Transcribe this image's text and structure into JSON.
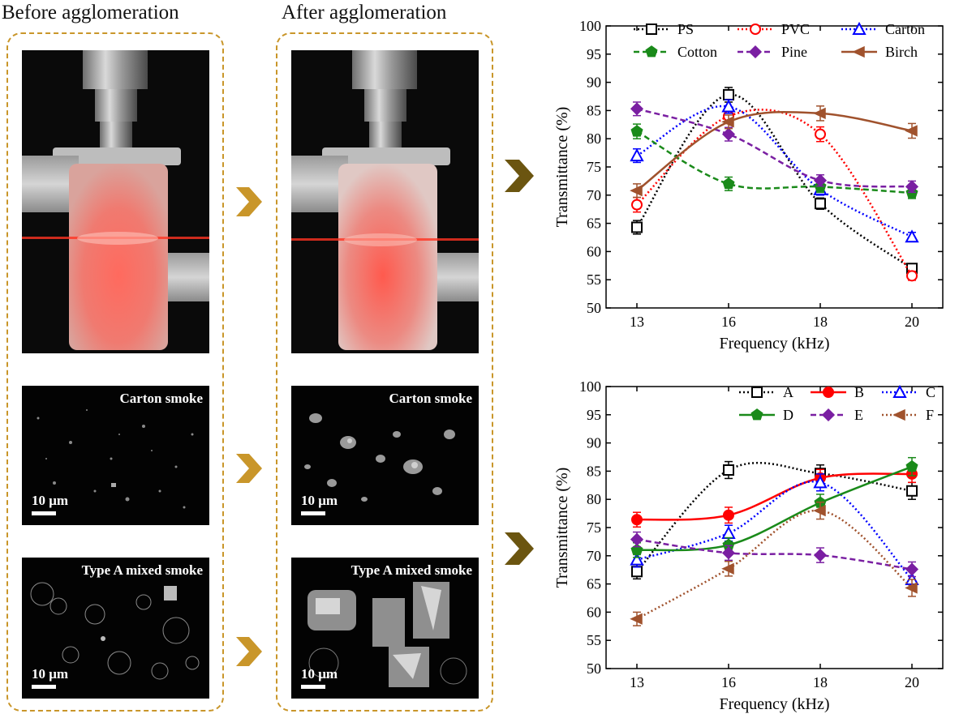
{
  "titles": {
    "before": "Before agglomeration",
    "after": "After agglomeration"
  },
  "sem": {
    "carton_label": "Carton smoke",
    "mixed_label": "Type A mixed smoke",
    "scale": "10 μm"
  },
  "colors": {
    "dash_border": "#c9962a",
    "arrow_gold": "#c9962a",
    "arrow_dark": "#6b5510"
  },
  "chart_data": [
    {
      "type": "line",
      "title": "",
      "xlabel": "Frequency (kHz)",
      "ylabel": "Transmittance (%)",
      "x": [
        13,
        16,
        18,
        20
      ],
      "xticks": [
        "13",
        "16",
        "18",
        "20"
      ],
      "ylim": [
        50,
        100
      ],
      "yticks": [
        "50",
        "55",
        "60",
        "65",
        "70",
        "75",
        "80",
        "85",
        "90",
        "95",
        "100"
      ],
      "legend": "top",
      "series": [
        {
          "name": "PS",
          "values": [
            64.3,
            87.8,
            68.5,
            57.0
          ],
          "color": "#000000",
          "marker": "square",
          "dash": "dotted",
          "errors": [
            1.2,
            1.3,
            1.0,
            0.8
          ]
        },
        {
          "name": "PVC",
          "values": [
            68.3,
            84.0,
            80.8,
            55.7
          ],
          "color": "#ff0000",
          "marker": "circle",
          "dash": "dotted",
          "errors": [
            1.3,
            1.3,
            1.3,
            0.8
          ]
        },
        {
          "name": "Carton",
          "values": [
            77.0,
            85.7,
            71.0,
            62.6
          ],
          "color": "#0000ff",
          "marker": "triangle",
          "dash": "dotted",
          "errors": [
            1.2,
            1.2,
            1.0,
            0.8
          ]
        },
        {
          "name": "Cotton",
          "values": [
            81.3,
            72.0,
            71.5,
            70.4
          ],
          "color": "#1a8a1a",
          "marker": "pentagon",
          "dash": "dashed",
          "errors": [
            1.3,
            1.2,
            1.0,
            1.0
          ]
        },
        {
          "name": "Pine",
          "values": [
            85.3,
            80.8,
            72.6,
            71.5
          ],
          "color": "#7a1fa2",
          "marker": "diamond",
          "dash": "dashed",
          "errors": [
            1.2,
            1.2,
            1.0,
            1.0
          ]
        },
        {
          "name": "Birch",
          "values": [
            70.8,
            83.0,
            84.5,
            81.4
          ],
          "color": "#a0522d",
          "marker": "left-triangle",
          "dash": "solid",
          "errors": [
            1.2,
            1.2,
            1.3,
            1.3
          ]
        }
      ]
    },
    {
      "type": "line",
      "title": "",
      "xlabel": "Frequency (kHz)",
      "ylabel": "Transmittance (%)",
      "x": [
        13,
        16,
        18,
        20
      ],
      "xticks": [
        "13",
        "16",
        "18",
        "20"
      ],
      "ylim": [
        50,
        100
      ],
      "yticks": [
        "50",
        "55",
        "60",
        "65",
        "70",
        "75",
        "80",
        "85",
        "90",
        "95",
        "100"
      ],
      "legend": "top-right",
      "series": [
        {
          "name": "A",
          "values": [
            67.2,
            85.2,
            84.6,
            81.5
          ],
          "color": "#000000",
          "marker": "square",
          "dash": "dotted",
          "errors": [
            1.3,
            1.5,
            1.5,
            1.5
          ]
        },
        {
          "name": "B",
          "values": [
            76.4,
            77.2,
            83.8,
            84.5
          ],
          "color": "#ff0000",
          "marker": "filled-circle",
          "dash": "solid",
          "errors": [
            1.3,
            1.4,
            1.5,
            1.5
          ]
        },
        {
          "name": "C",
          "values": [
            69.3,
            74.0,
            83.0,
            65.8
          ],
          "color": "#0000ff",
          "marker": "triangle",
          "dash": "dotted",
          "errors": [
            1.3,
            1.4,
            1.5,
            1.5
          ]
        },
        {
          "name": "D",
          "values": [
            71.0,
            71.9,
            79.4,
            85.8
          ],
          "color": "#1a8a1a",
          "marker": "filled-pentagon",
          "dash": "solid",
          "errors": [
            1.3,
            1.3,
            1.5,
            1.6
          ]
        },
        {
          "name": "E",
          "values": [
            72.9,
            70.5,
            70.1,
            67.6
          ],
          "color": "#7a1fa2",
          "marker": "diamond",
          "dash": "dashed",
          "errors": [
            1.3,
            1.3,
            1.3,
            1.3
          ]
        },
        {
          "name": "F",
          "values": [
            58.8,
            67.7,
            78.0,
            64.3
          ],
          "color": "#a0522d",
          "marker": "left-triangle",
          "dash": "dotted",
          "errors": [
            1.2,
            1.3,
            1.5,
            1.5
          ]
        }
      ]
    }
  ]
}
